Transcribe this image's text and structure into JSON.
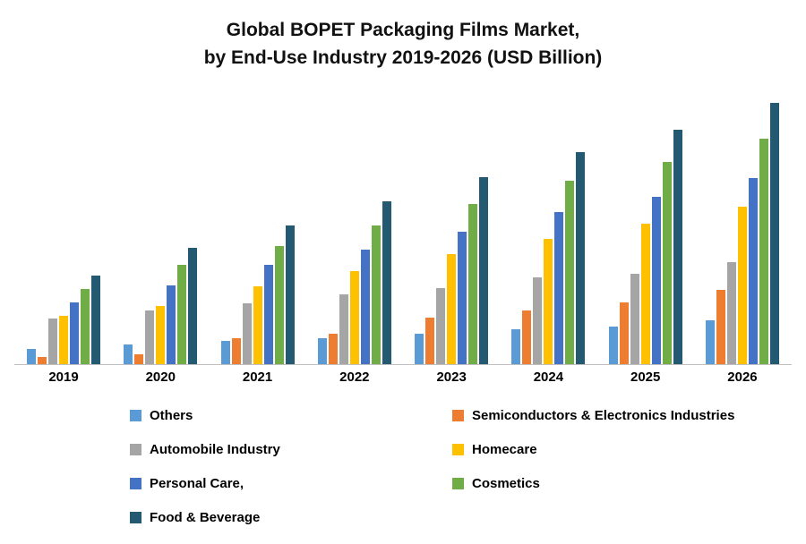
{
  "chart": {
    "title_line1": "Global BOPET Packaging Films Market,",
    "title_line2": "by End-Use Industry 2019-2026 (USD Billion)"
  },
  "chart_data": {
    "type": "bar",
    "title": "Global BOPET Packaging Films Market, by End-Use Industry 2019-2026 (USD Billion)",
    "categories": [
      "2019",
      "2020",
      "2021",
      "2022",
      "2023",
      "2024",
      "2025",
      "2026"
    ],
    "series": [
      {
        "name": "Others",
        "color": "#5B9BD5",
        "values": [
          0.17,
          0.22,
          0.26,
          0.29,
          0.33,
          0.38,
          0.41,
          0.48
        ]
      },
      {
        "name": "Semiconductors & Electronics Industries",
        "color": "#ED7D31",
        "values": [
          0.08,
          0.11,
          0.29,
          0.33,
          0.51,
          0.59,
          0.68,
          0.82
        ]
      },
      {
        "name": "Automobile Industry",
        "color": "#A5A5A5",
        "values": [
          0.5,
          0.59,
          0.67,
          0.77,
          0.84,
          0.95,
          0.99,
          1.12
        ]
      },
      {
        "name": "Homecare",
        "color": "#FFC000",
        "values": [
          0.53,
          0.64,
          0.86,
          1.02,
          1.21,
          1.38,
          1.54,
          1.73
        ]
      },
      {
        "name": "Personal Care,",
        "color": "#4472C4",
        "values": [
          0.68,
          0.87,
          1.09,
          1.26,
          1.46,
          1.67,
          1.84,
          2.05
        ]
      },
      {
        "name": "Cosmetics",
        "color": "#70AD47",
        "values": [
          0.83,
          1.09,
          1.3,
          1.52,
          1.76,
          2.02,
          2.22,
          2.48
        ]
      },
      {
        "name": "Food & Beverage",
        "color": "#235A72",
        "values": [
          0.97,
          1.28,
          1.52,
          1.79,
          2.06,
          2.33,
          2.58,
          2.87
        ]
      }
    ],
    "xlabel": "",
    "ylabel": "",
    "ylim": [
      0,
      3.0
    ],
    "grid": false,
    "y_axis_labels_visible": false,
    "legend_position": "bottom"
  }
}
